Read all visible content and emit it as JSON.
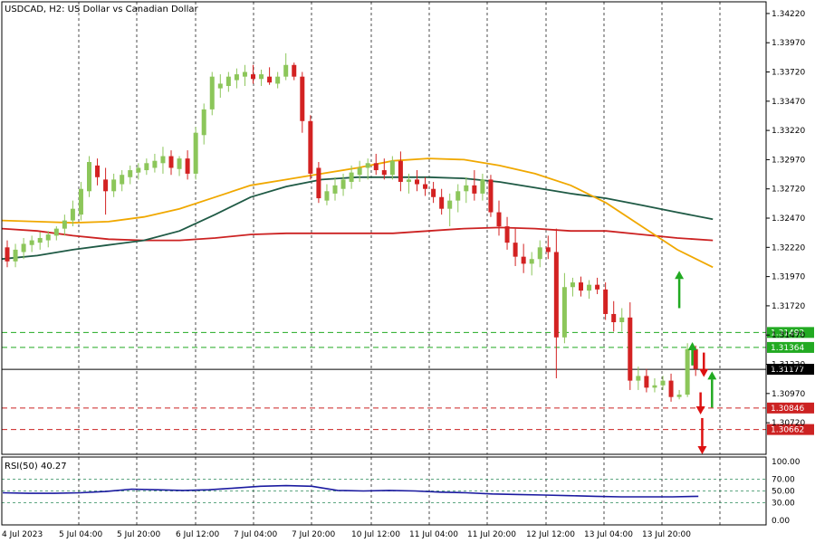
{
  "chart_title": "USDCAD, H2:  US Dollar vs Canadian Dollar",
  "rsi_label": "RSI(50) 40.27",
  "colors": {
    "bull": "#8cc65a",
    "bear": "#d32222",
    "ma_fast": "#f0a800",
    "ma_mid": "#1f5a45",
    "ma_slow": "#cc2222",
    "rsi_line": "#1a1aa0",
    "arrow_up": "#22aa22",
    "arrow_down": "#dd1111",
    "green_level": "#22aa22",
    "red_level": "#cc2222"
  },
  "chart_data": {
    "type": "candlestick",
    "symbol": "USDCAD",
    "timeframe": "H2",
    "ylim": [
      1.3045,
      1.3432
    ],
    "price_ticks": [
      "1.34220",
      "1.33970",
      "1.33720",
      "1.33470",
      "1.33220",
      "1.32970",
      "1.32720",
      "1.32470",
      "1.32220",
      "1.31970",
      "1.31720",
      "1.31470",
      "1.31220",
      "1.30970",
      "1.30720"
    ],
    "time_labels": [
      "4 Jul 2023",
      "5 Jul 04:00",
      "5 Jul 20:00",
      "6 Jul 12:00",
      "7 Jul 04:00",
      "7 Jul 20:00",
      "10 Jul 12:00",
      "11 Jul 04:00",
      "11 Jul 20:00",
      "12 Jul 12:00",
      "13 Jul 04:00",
      "13 Jul 20:00"
    ],
    "levels": [
      {
        "label": "1.31492",
        "value": 1.31492,
        "color": "green"
      },
      {
        "label": "1.31364",
        "value": 1.31364,
        "color": "green"
      },
      {
        "label": "1.31177",
        "value": 1.31177,
        "color": "black"
      },
      {
        "label": "1.30846",
        "value": 1.30846,
        "color": "red"
      },
      {
        "label": "1.30662",
        "value": 1.30662,
        "color": "red"
      }
    ],
    "candles": [
      [
        1.3222,
        1.3228,
        1.3205,
        1.321
      ],
      [
        1.321,
        1.3225,
        1.3205,
        1.322
      ],
      [
        1.3218,
        1.323,
        1.3212,
        1.3225
      ],
      [
        1.3224,
        1.3232,
        1.3218,
        1.3228
      ],
      [
        1.3226,
        1.3235,
        1.322,
        1.323
      ],
      [
        1.3228,
        1.3236,
        1.3222,
        1.3233
      ],
      [
        1.3232,
        1.324,
        1.3228,
        1.3238
      ],
      [
        1.3238,
        1.325,
        1.3232,
        1.3245
      ],
      [
        1.3245,
        1.3262,
        1.324,
        1.3255
      ],
      [
        1.325,
        1.3278,
        1.3245,
        1.3272
      ],
      [
        1.327,
        1.33,
        1.3265,
        1.3295
      ],
      [
        1.3292,
        1.3298,
        1.3275,
        1.3282
      ],
      [
        1.328,
        1.329,
        1.325,
        1.327
      ],
      [
        1.327,
        1.3285,
        1.3265,
        1.328
      ],
      [
        1.3276,
        1.3288,
        1.327,
        1.3284
      ],
      [
        1.3282,
        1.3292,
        1.3276,
        1.3288
      ],
      [
        1.3286,
        1.3294,
        1.328,
        1.329
      ],
      [
        1.3288,
        1.3298,
        1.3284,
        1.3294
      ],
      [
        1.329,
        1.3302,
        1.3286,
        1.3296
      ],
      [
        1.3294,
        1.3308,
        1.3285,
        1.33
      ],
      [
        1.33,
        1.3305,
        1.3284,
        1.329
      ],
      [
        1.3289,
        1.33,
        1.3283,
        1.3298
      ],
      [
        1.3298,
        1.3305,
        1.328,
        1.3285
      ],
      [
        1.3285,
        1.3325,
        1.328,
        1.332
      ],
      [
        1.3318,
        1.3345,
        1.331,
        1.334
      ],
      [
        1.334,
        1.3372,
        1.3335,
        1.3368
      ],
      [
        1.3358,
        1.337,
        1.335,
        1.3362
      ],
      [
        1.336,
        1.3372,
        1.3355,
        1.3368
      ],
      [
        1.3365,
        1.3375,
        1.3358,
        1.337
      ],
      [
        1.3368,
        1.3378,
        1.336,
        1.3372
      ],
      [
        1.337,
        1.3378,
        1.3362,
        1.3366
      ],
      [
        1.3366,
        1.3374,
        1.336,
        1.337
      ],
      [
        1.3368,
        1.3376,
        1.3361,
        1.3363
      ],
      [
        1.3362,
        1.3372,
        1.3358,
        1.3368
      ],
      [
        1.3368,
        1.3388,
        1.3365,
        1.3378
      ],
      [
        1.3378,
        1.338,
        1.3365,
        1.3368
      ],
      [
        1.3368,
        1.3372,
        1.332,
        1.333
      ],
      [
        1.333,
        1.3335,
        1.328,
        1.3285
      ],
      [
        1.329,
        1.3295,
        1.326,
        1.3264
      ],
      [
        1.3262,
        1.3276,
        1.3258,
        1.327
      ],
      [
        1.3268,
        1.3282,
        1.3262,
        1.3275
      ],
      [
        1.3272,
        1.3285,
        1.3266,
        1.328
      ],
      [
        1.3278,
        1.3292,
        1.3272,
        1.3286
      ],
      [
        1.3284,
        1.3296,
        1.3278,
        1.329
      ],
      [
        1.329,
        1.3298,
        1.328,
        1.3294
      ],
      [
        1.3294,
        1.3302,
        1.3284,
        1.3288
      ],
      [
        1.3288,
        1.3298,
        1.328,
        1.3284
      ],
      [
        1.3284,
        1.33,
        1.328,
        1.3296
      ],
      [
        1.3296,
        1.3304,
        1.327,
        1.3278
      ],
      [
        1.3278,
        1.3285,
        1.3268,
        1.328
      ],
      [
        1.328,
        1.3288,
        1.327,
        1.3276
      ],
      [
        1.3276,
        1.3282,
        1.3266,
        1.3272
      ],
      [
        1.3272,
        1.3278,
        1.326,
        1.3265
      ],
      [
        1.3265,
        1.3272,
        1.325,
        1.3255
      ],
      [
        1.3255,
        1.3268,
        1.324,
        1.3262
      ],
      [
        1.3262,
        1.3276,
        1.3252,
        1.327
      ],
      [
        1.327,
        1.3282,
        1.326,
        1.3275
      ],
      [
        1.3275,
        1.3288,
        1.3262,
        1.3268
      ],
      [
        1.3268,
        1.3285,
        1.3262,
        1.328
      ],
      [
        1.328,
        1.3284,
        1.3248,
        1.3252
      ],
      [
        1.3252,
        1.3262,
        1.3232,
        1.324
      ],
      [
        1.324,
        1.3248,
        1.322,
        1.3226
      ],
      [
        1.3226,
        1.3238,
        1.3206,
        1.3214
      ],
      [
        1.3214,
        1.3225,
        1.32,
        1.3208
      ],
      [
        1.3208,
        1.3218,
        1.3198,
        1.3212
      ],
      [
        1.3212,
        1.3228,
        1.3205,
        1.3222
      ],
      [
        1.3222,
        1.3232,
        1.3212,
        1.3218
      ],
      [
        1.3218,
        1.3238,
        1.311,
        1.3145
      ],
      [
        1.3145,
        1.32,
        1.314,
        1.3188
      ],
      [
        1.3188,
        1.3196,
        1.318,
        1.3192
      ],
      [
        1.3192,
        1.3197,
        1.318,
        1.3185
      ],
      [
        1.3185,
        1.3194,
        1.3178,
        1.319
      ],
      [
        1.319,
        1.3196,
        1.3182,
        1.3186
      ],
      [
        1.3186,
        1.3192,
        1.316,
        1.3165
      ],
      [
        1.3165,
        1.3176,
        1.315,
        1.3158
      ],
      [
        1.3158,
        1.317,
        1.315,
        1.3162
      ],
      [
        1.3162,
        1.3175,
        1.31,
        1.3108
      ],
      [
        1.3108,
        1.312,
        1.31,
        1.3112
      ],
      [
        1.3112,
        1.3118,
        1.3098,
        1.3102
      ],
      [
        1.3102,
        1.311,
        1.3098,
        1.3104
      ],
      [
        1.3104,
        1.3112,
        1.31,
        1.3108
      ],
      [
        1.3108,
        1.3114,
        1.309,
        1.3094
      ],
      [
        1.3094,
        1.31,
        1.3092,
        1.3096
      ],
      [
        1.3096,
        1.314,
        1.3094,
        1.3135
      ],
      [
        1.3135,
        1.3138,
        1.3112,
        1.3118
      ]
    ],
    "ma_fast": [
      1.3245,
      1.3244,
      1.3243,
      1.3244,
      1.3248,
      1.3255,
      1.3265,
      1.3275,
      1.328,
      1.3285,
      1.329,
      1.3296,
      1.3298,
      1.3297,
      1.3292,
      1.3285,
      1.3275,
      1.326,
      1.324,
      1.322,
      1.3205
    ],
    "ma_mid": [
      1.3212,
      1.3215,
      1.322,
      1.3224,
      1.3228,
      1.3236,
      1.325,
      1.3265,
      1.3274,
      1.328,
      1.3282,
      1.3282,
      1.3282,
      1.3281,
      1.3278,
      1.3273,
      1.3268,
      1.3264,
      1.3258,
      1.3252,
      1.3246
    ],
    "ma_slow": [
      1.3238,
      1.3236,
      1.3232,
      1.3229,
      1.3228,
      1.3228,
      1.323,
      1.3233,
      1.3234,
      1.3234,
      1.3234,
      1.3234,
      1.3236,
      1.3238,
      1.3239,
      1.3238,
      1.3236,
      1.3236,
      1.3233,
      1.323,
      1.3228
    ],
    "rsi": {
      "ylim": [
        0,
        100
      ],
      "ticks": [
        "100.00",
        "70.00",
        "50.00",
        "30.00",
        "0.00"
      ],
      "dashed_levels": [
        70,
        50,
        30
      ],
      "values": [
        47,
        46,
        46,
        47,
        49,
        53,
        52,
        51,
        52,
        55,
        58,
        59,
        58,
        51,
        50,
        51,
        50,
        48,
        47,
        45,
        44,
        43,
        42,
        41,
        40,
        40,
        40,
        41
      ]
    },
    "arrows": [
      {
        "direction": "up",
        "from": 1.317,
        "to": 1.3195,
        "col": 82
      },
      {
        "direction": "up",
        "from": 1.3121,
        "to": 1.3134,
        "col": 83.6
      },
      {
        "direction": "down",
        "from": 1.3132,
        "to": 1.3118,
        "col": 85
      },
      {
        "direction": "up",
        "from": 1.3085,
        "to": 1.3109,
        "col": 86
      },
      {
        "direction": "down",
        "from": 1.3098,
        "to": 1.3086,
        "col": 84.6
      },
      {
        "direction": "down",
        "from": 1.3076,
        "to": 1.3052,
        "col": 84.8
      }
    ]
  }
}
